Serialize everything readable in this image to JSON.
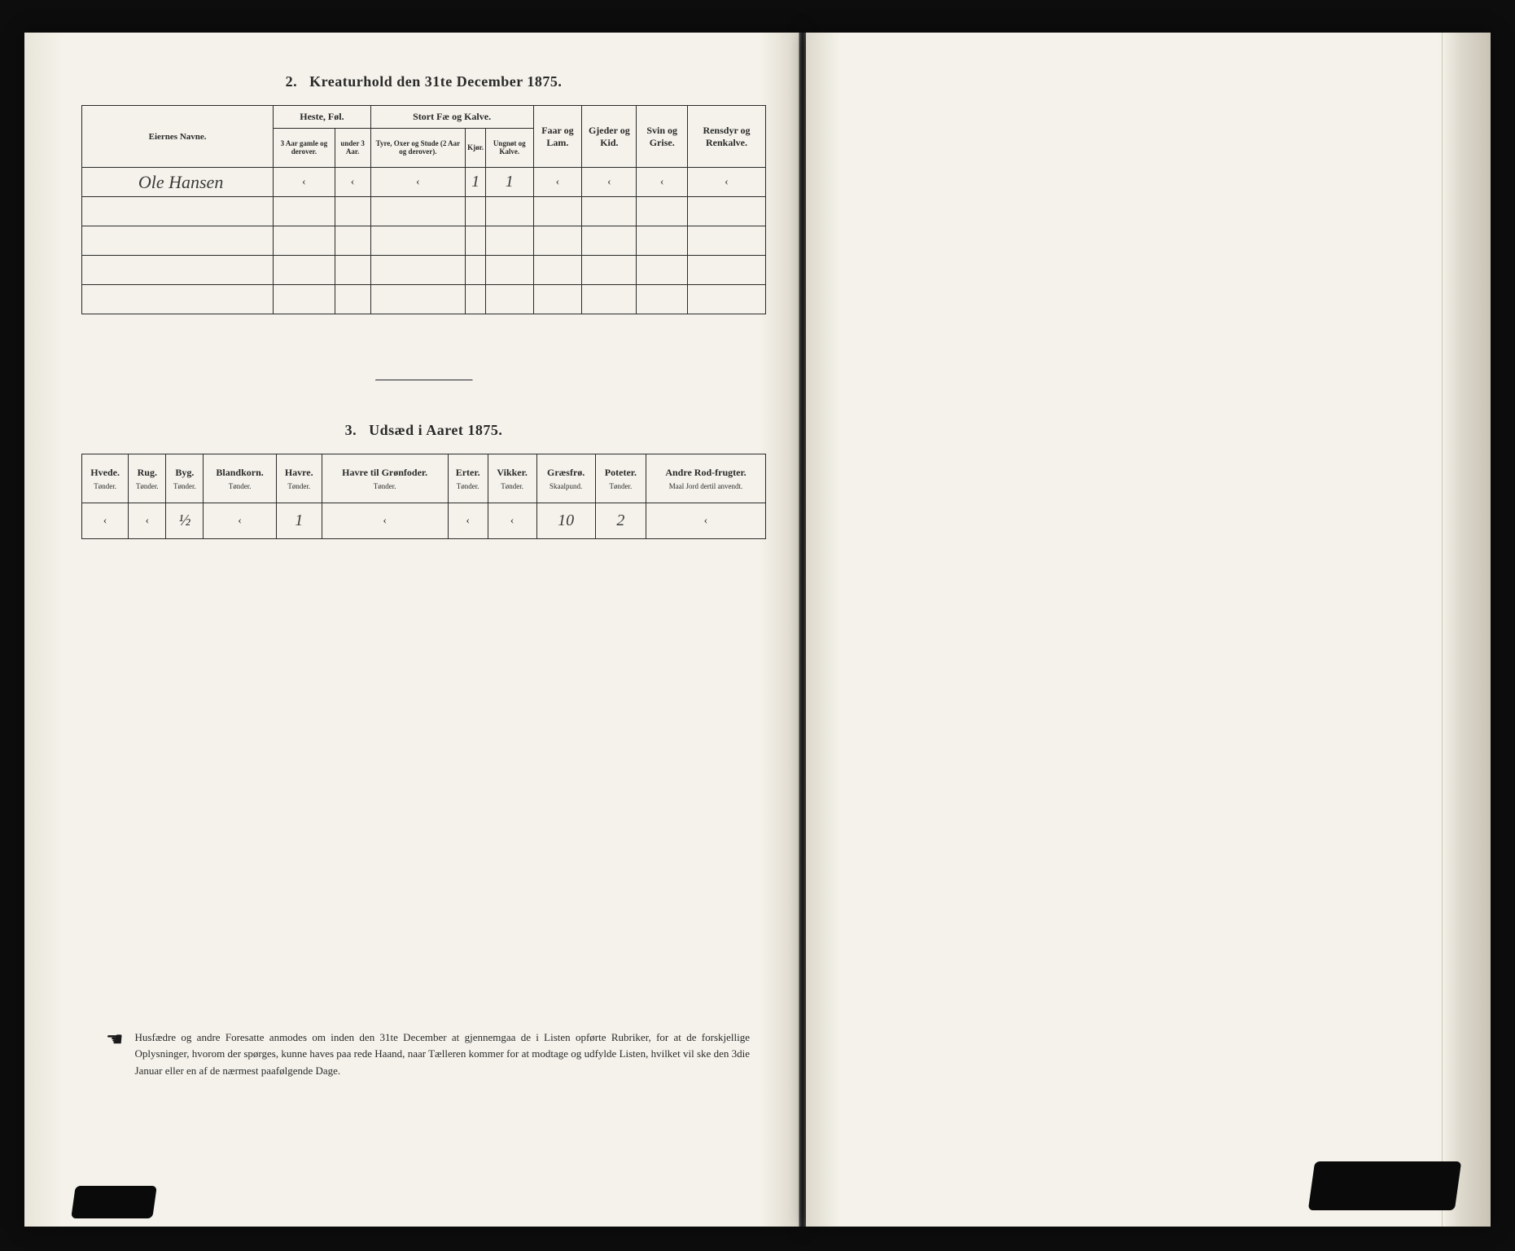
{
  "background_color": "#1a1a1a",
  "page_color": "#f4f2ea",
  "ink_color": "#2a2a2a",
  "handwriting_color": "#3a3a3a",
  "table1": {
    "title_num": "2.",
    "title": "Kreaturhold den 31te December 1875.",
    "name_header": "Eiernes Navne.",
    "groups": {
      "heste": "Heste, Føl.",
      "stort": "Stort Fæ og Kalve.",
      "faar": "Faar og Lam.",
      "gjeder": "Gjeder og Kid.",
      "svin": "Svin og Grise.",
      "rensdyr": "Rensdyr og Renkalve."
    },
    "subs": {
      "heste_a": "3 Aar gamle og derover.",
      "heste_b": "under 3 Aar.",
      "stort_a": "Tyre, Oxer og Stude (2 Aar og derover).",
      "stort_b": "Kjør.",
      "stort_c": "Ungnøt og Kalve."
    },
    "row1": {
      "name": "Ole Hansen",
      "c1": "‹",
      "c2": "‹",
      "c3": "‹",
      "c4": "1",
      "c5": "1",
      "c6": "‹",
      "c7": "‹",
      "c8": "‹",
      "c9": "‹"
    }
  },
  "table2": {
    "title_num": "3.",
    "title": "Udsæd i Aaret 1875.",
    "cols": [
      {
        "h": "Hvede.",
        "u": "Tønder."
      },
      {
        "h": "Rug.",
        "u": "Tønder."
      },
      {
        "h": "Byg.",
        "u": "Tønder."
      },
      {
        "h": "Blandkorn.",
        "u": "Tønder."
      },
      {
        "h": "Havre.",
        "u": "Tønder."
      },
      {
        "h": "Havre til Grønfoder.",
        "u": "Tønder."
      },
      {
        "h": "Erter.",
        "u": "Tønder."
      },
      {
        "h": "Vikker.",
        "u": "Tønder."
      },
      {
        "h": "Græsfrø.",
        "u": "Skaalpund."
      },
      {
        "h": "Poteter.",
        "u": "Tønder."
      },
      {
        "h": "Andre Rod-frugter.",
        "u": "Maal Jord dertil anvendt."
      }
    ],
    "row": [
      "‹",
      "‹",
      "½",
      "‹",
      "1",
      "‹",
      "‹",
      "‹",
      "10",
      "2",
      "‹"
    ]
  },
  "footnote": "Husfædre og andre Foresatte anmodes om inden den 31te December at gjennemgaa de i Listen opførte Rubriker, for at de forskjellige Oplysninger, hvorom der spørges, kunne haves paa rede Haand, naar Tælleren kommer for at modtage og udfylde Listen, hvilket vil ske den 3die Januar eller en af de nærmest paafølgende Dage."
}
